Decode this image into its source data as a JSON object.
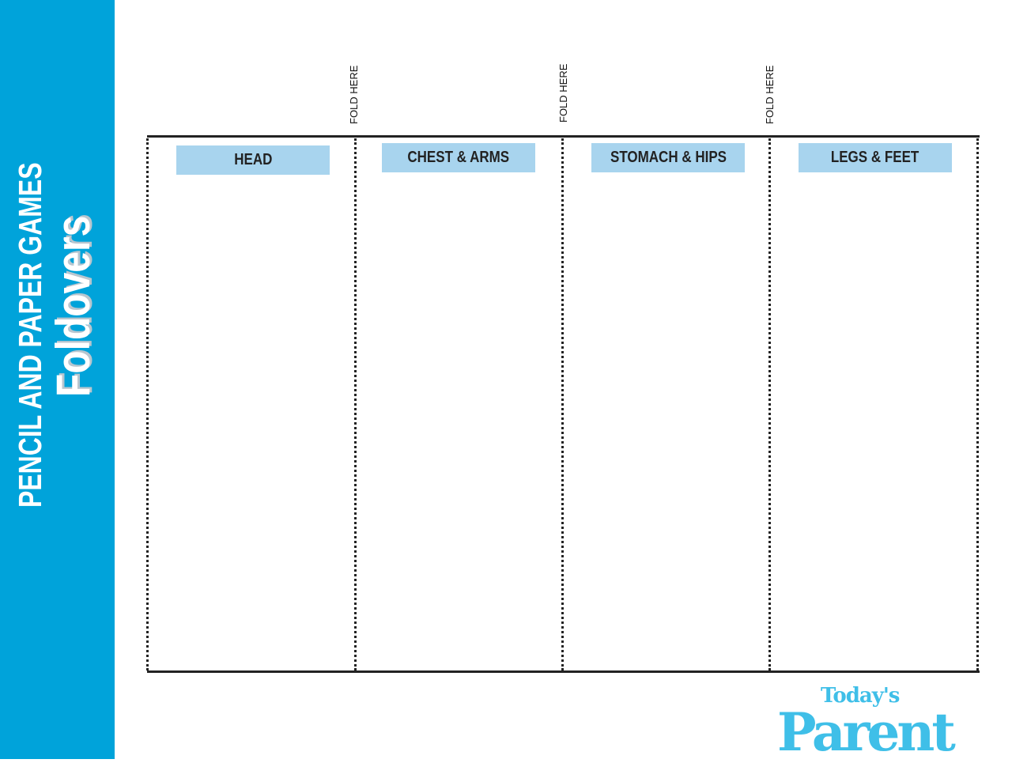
{
  "sidebar": {
    "subtitle": "PENCIL AND PAPER GAMES",
    "title": "Foldovers",
    "color": "#00a3da"
  },
  "fold_label": "FOLD HERE",
  "columns": [
    {
      "label": "HEAD"
    },
    {
      "label": "CHEST & ARMS"
    },
    {
      "label": "STOMACH & HIPS"
    },
    {
      "label": "LEGS & FEET"
    }
  ],
  "label_color": "#a8d4ee",
  "logo": {
    "top": "Today's",
    "bottom": "Parent"
  }
}
